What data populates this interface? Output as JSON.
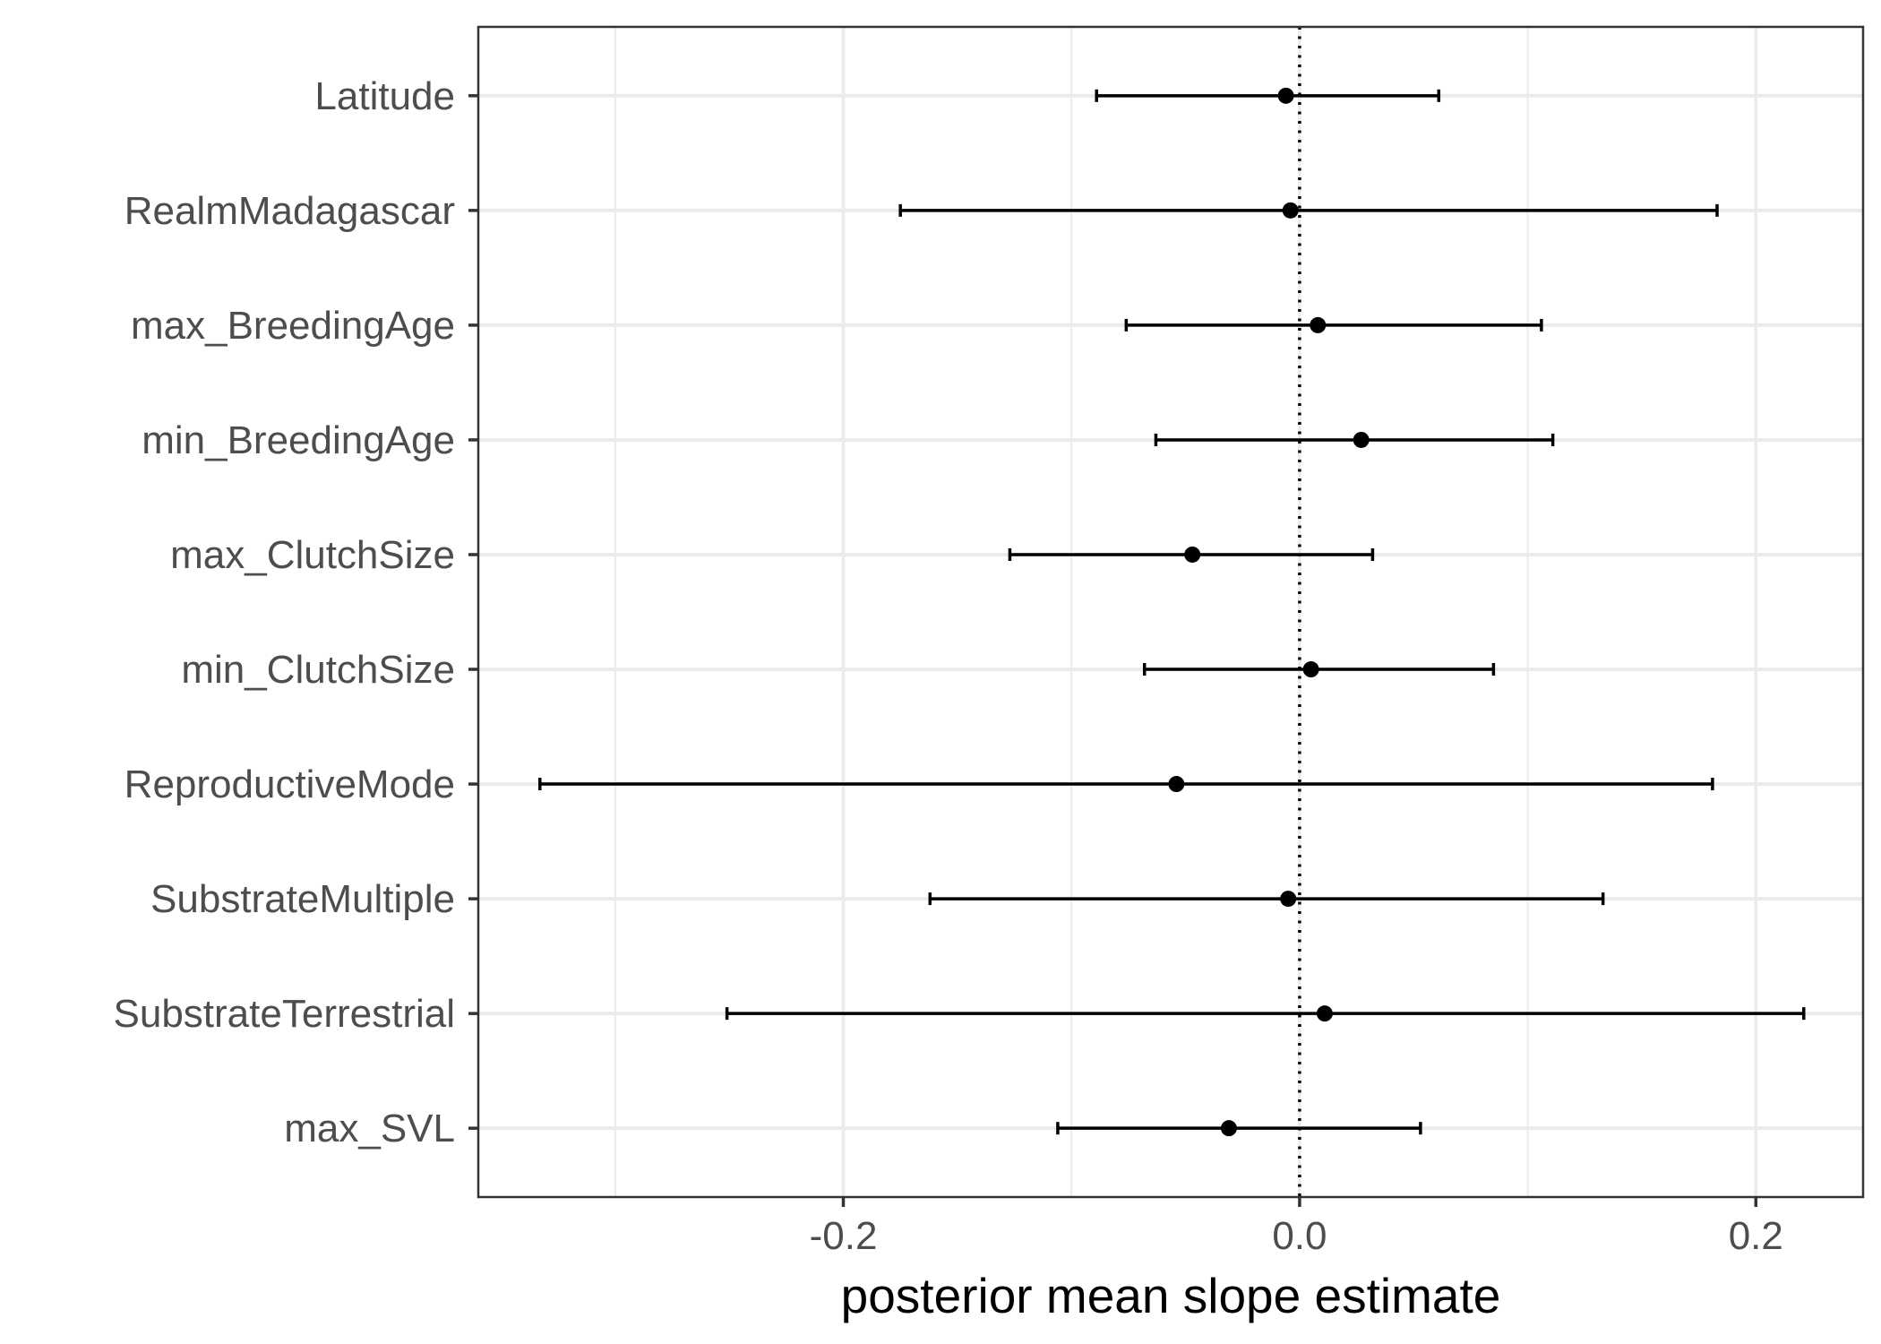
{
  "chart_data": {
    "type": "scatter",
    "subtype": "coefficient-plot-with-error-bars",
    "title": "",
    "xlabel": "posterior mean slope estimate",
    "ylabel": "",
    "xlim": [
      -0.36,
      0.247
    ],
    "x_ticks": [
      -0.2,
      0.0,
      0.2
    ],
    "x_tick_labels": [
      "-0.2",
      "0.0",
      "0.2"
    ],
    "reference_line": {
      "x": 0.0,
      "style": "dotted"
    },
    "grid": true,
    "legend": "none",
    "categories": [
      "Latitude",
      "RealmMadagascar",
      "max_BreedingAge",
      "min_BreedingAge",
      "max_ClutchSize",
      "min_ClutchSize",
      "ReproductiveMode",
      "SubstrateMultiple",
      "SubstrateTerrestrial",
      "max_SVL"
    ],
    "points": [
      {
        "label": "Latitude",
        "estimate": -0.006,
        "lower": -0.089,
        "upper": 0.061
      },
      {
        "label": "RealmMadagascar",
        "estimate": -0.004,
        "lower": -0.175,
        "upper": 0.183
      },
      {
        "label": "max_BreedingAge",
        "estimate": 0.008,
        "lower": -0.076,
        "upper": 0.106
      },
      {
        "label": "min_BreedingAge",
        "estimate": 0.027,
        "lower": -0.063,
        "upper": 0.111
      },
      {
        "label": "max_ClutchSize",
        "estimate": -0.047,
        "lower": -0.127,
        "upper": 0.032
      },
      {
        "label": "min_ClutchSize",
        "estimate": 0.005,
        "lower": -0.068,
        "upper": 0.085
      },
      {
        "label": "ReproductiveMode",
        "estimate": -0.054,
        "lower": -0.333,
        "upper": 0.181
      },
      {
        "label": "SubstrateMultiple",
        "estimate": -0.005,
        "lower": -0.162,
        "upper": 0.133
      },
      {
        "label": "SubstrateTerrestrial",
        "estimate": 0.011,
        "lower": -0.251,
        "upper": 0.221
      },
      {
        "label": "max_SVL",
        "estimate": -0.031,
        "lower": -0.106,
        "upper": 0.053
      }
    ],
    "colors": {
      "point": "#000000",
      "errorbar": "#000000",
      "grid": "#ebebeb",
      "panel_border": "#333333",
      "tick_label": "#4d4d4d",
      "axis_title": "#000000"
    }
  }
}
